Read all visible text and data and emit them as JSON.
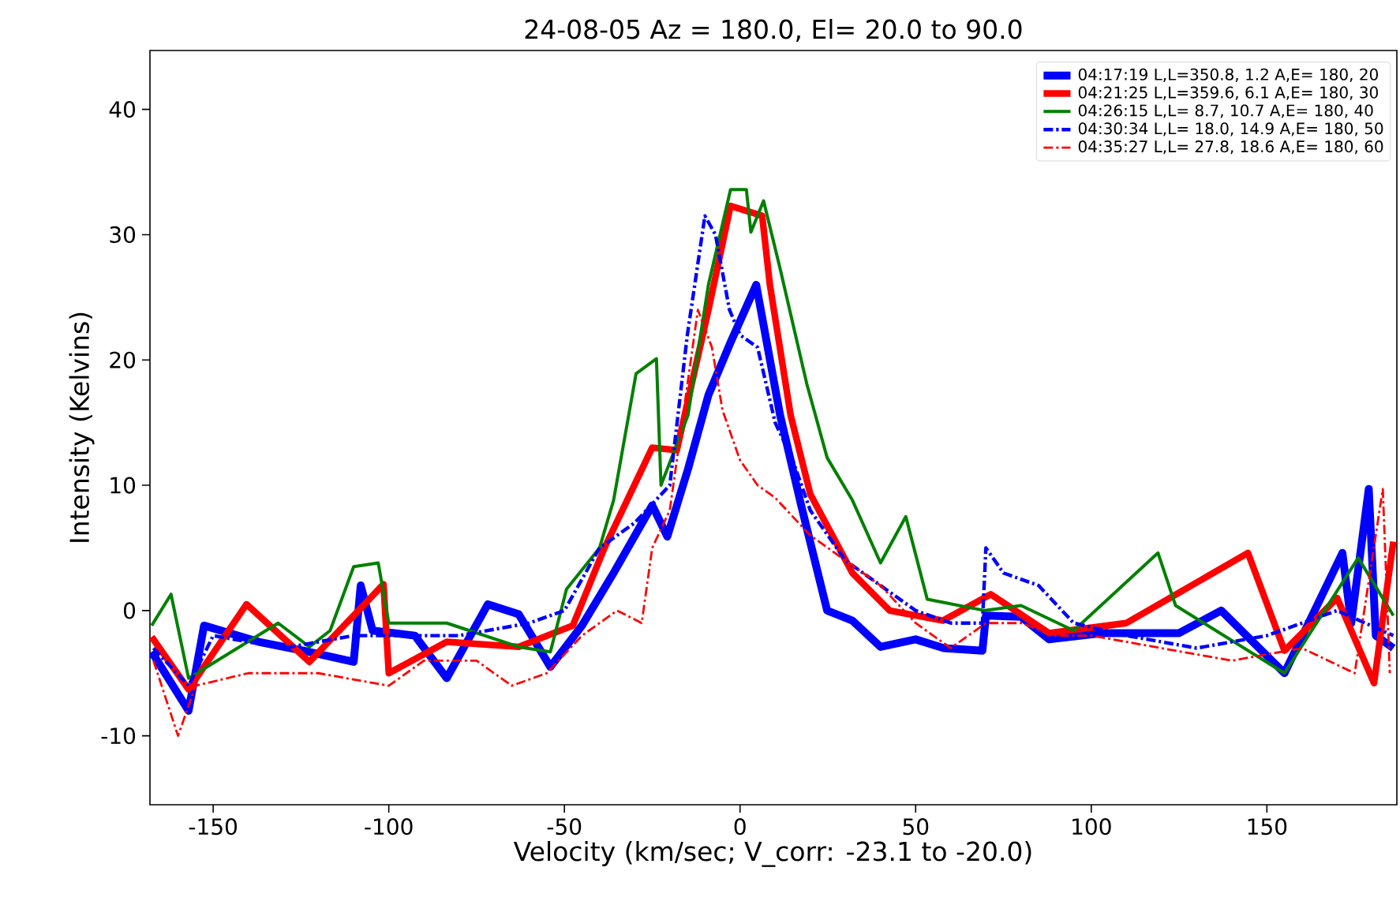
{
  "chart_data": {
    "type": "line",
    "title": "24-08-05   Az =  180.0,  El=  20.0 to   90.0",
    "xlabel": "Velocity (km/sec; V_corr: -23.1 to -20.0)",
    "ylabel": "Intensity (Kelvins)",
    "xlim": [
      -168,
      187
    ],
    "ylim": [
      -15.5,
      44.7
    ],
    "xticks": [
      -150,
      -100,
      -50,
      0,
      50,
      100,
      150
    ],
    "yticks": [
      -10,
      0,
      10,
      20,
      30,
      40
    ],
    "grid": false,
    "legend": "top right",
    "marker": "none",
    "series": [
      {
        "name": "04:17:19 L,L=350.8,  1.2 A,E= 180,  20",
        "color": "#0000ff",
        "line_style": "solid",
        "x": [
          -167.5,
          -157,
          -152.6,
          -137,
          -122.6,
          -110,
          -108,
          -104.6,
          -92.6,
          -83.5,
          -71.8,
          -63,
          -54,
          -45,
          -36,
          -25,
          -20.7,
          -14.8,
          -9,
          -2.7,
          4.6,
          11.4,
          17.4,
          24.8,
          32,
          40,
          50,
          58,
          69,
          70,
          80,
          88,
          103,
          125,
          137,
          155,
          171.5,
          174,
          179,
          181,
          186
        ],
        "values": [
          -3.3,
          -8,
          -1.2,
          -2.5,
          -3.3,
          -4.1,
          2,
          -1.6,
          -2,
          -5.4,
          0.5,
          -0.3,
          -4.5,
          -1.2,
          3,
          8.4,
          5.9,
          11.3,
          17.2,
          21.4,
          26,
          15.6,
          8.4,
          0,
          -0.8,
          -2.9,
          -2.3,
          -3,
          -3.2,
          -0.4,
          -0.5,
          -2.3,
          -1.8,
          -1.8,
          0,
          -5,
          4.6,
          -1,
          9.7,
          -2,
          -3
        ]
      },
      {
        "name": "04:21:25 L,L=359.6,  6.1 A,E= 180,  30",
        "color": "#ff0000",
        "line_style": "solid",
        "x": [
          -167.5,
          -157,
          -140.5,
          -122.6,
          -101.5,
          -100,
          -83.5,
          -63,
          -47.6,
          -38.6,
          -25,
          -18,
          -9,
          -2.7,
          6.3,
          8.5,
          14.4,
          20,
          32,
          42.6,
          57.8,
          71.4,
          88,
          110,
          144.6,
          155,
          170,
          180.5,
          186
        ],
        "values": [
          -2.1,
          -6.3,
          0.5,
          -4.1,
          2.1,
          -5,
          -2.5,
          -2.9,
          -1.2,
          5,
          13,
          12.8,
          24,
          32.3,
          31.5,
          26,
          15.6,
          9.3,
          3,
          0,
          -0.8,
          1.3,
          -1.8,
          -1,
          4.6,
          -3.2,
          1,
          -5.8,
          5.5
        ]
      },
      {
        "name": "04:26:15 L,L=  8.7, 10.7 A,E= 180,  40",
        "color": "#008000",
        "line_style": "solid",
        "x": [
          -167.5,
          -162,
          -157,
          -131.5,
          -122.6,
          -116.7,
          -110,
          -103,
          -100,
          -83.5,
          -63,
          -54,
          -49.4,
          -40,
          -36,
          -29.6,
          -23.8,
          -22.5,
          -14.8,
          -9,
          -2.7,
          1.8,
          3.1,
          6.7,
          11.4,
          19,
          24.8,
          32,
          40,
          47.2,
          53.3,
          69.7,
          80,
          95,
          119,
          124,
          155,
          176,
          186
        ],
        "values": [
          -1.2,
          1.3,
          -5.4,
          -1,
          -2.9,
          -1.6,
          3.5,
          3.8,
          -1,
          -1,
          -2.9,
          -3.3,
          1.7,
          5,
          8.8,
          18.9,
          20.1,
          10,
          15.6,
          26,
          33.6,
          33.6,
          30.2,
          32.7,
          27.3,
          18.1,
          12.2,
          8.8,
          3.8,
          7.5,
          0.9,
          0,
          0.4,
          -1.6,
          4.6,
          0.4,
          -5,
          4.2,
          -0.4
        ]
      },
      {
        "name": "04:30:34 L,L= 18.0, 14.9 A,E= 180,  50",
        "color": "#0000ff",
        "line_style": "dashdot",
        "x": [
          -167,
          -157,
          -150,
          -130,
          -110,
          -100,
          -80,
          -60,
          -50,
          -40,
          -30,
          -20,
          -15,
          -10,
          -7,
          -3,
          0,
          5,
          10,
          15,
          20,
          30,
          40,
          50,
          60,
          69,
          70,
          75,
          85,
          95,
          110,
          130,
          150,
          170,
          186
        ],
        "values": [
          -3,
          -6,
          -2,
          -3,
          -2,
          -2,
          -2,
          -1,
          0,
          5,
          7,
          10,
          22,
          31.5,
          30,
          24,
          22,
          21,
          15,
          12,
          8,
          4,
          2,
          0,
          -1,
          -1,
          5,
          3,
          2,
          -1,
          -2,
          -3,
          -2,
          0,
          -2
        ]
      },
      {
        "name": "04:35:27 L,L= 27.8, 18.6 A,E= 180,  60",
        "color": "#ff0000",
        "line_style": "dashdot",
        "x": [
          -167,
          -160,
          -155,
          -140,
          -120,
          -100,
          -90,
          -75,
          -65,
          -55,
          -45,
          -35,
          -28,
          -25,
          -20,
          -15,
          -12,
          -8,
          -5,
          0,
          5,
          10,
          20,
          30,
          40,
          50,
          60,
          70,
          80,
          90,
          100,
          120,
          140,
          160,
          175,
          183,
          185
        ],
        "values": [
          -4,
          -10,
          -6,
          -5,
          -5,
          -6,
          -4,
          -4,
          -6,
          -5,
          -2,
          0,
          -1,
          5,
          8,
          18,
          24,
          21,
          16,
          12,
          10,
          9,
          6,
          4,
          2,
          -1,
          -3,
          -1,
          -1,
          -2,
          -2,
          -3,
          -4,
          -3,
          -5,
          9.7,
          -5
        ]
      }
    ]
  }
}
